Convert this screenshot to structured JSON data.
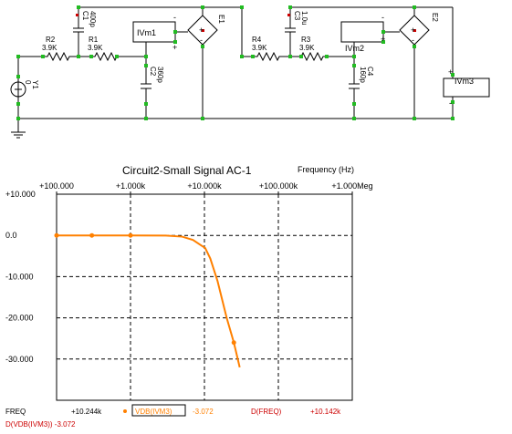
{
  "schematic": {
    "components": {
      "c1_name": "C1",
      "c1_value": "400p",
      "r2_name": "R2",
      "r2_value": "3.9K",
      "r1_name": "R1",
      "r1_value": "3.9K",
      "ivm1": "IVm1",
      "e1": "E1",
      "c2_name": "C2",
      "c2_value": "360p",
      "y1_name": "Y1",
      "y1_value": "0",
      "r4_name": "R4",
      "r4_value": "3.9K",
      "c3_name": "C3",
      "c3_value": "1.0u",
      "r3_name": "R3",
      "r3_value": "3.9K",
      "ivm2": "IVm2",
      "e2": "E2",
      "c4_name": "C4",
      "c4_value": "160p",
      "ivm3": "IVm3"
    },
    "polarity": {
      "plus": "+",
      "minus": "-"
    }
  },
  "plot": {
    "title": "Circuit2-Small Signal AC-1",
    "x_caption": "Frequency (Hz)",
    "top_ticks": [
      "+100.000",
      "+1.000k",
      "+10.000k",
      "+100.000k",
      "+1.000Meg"
    ],
    "left_ticks": [
      "+10.000",
      "0.0",
      "-10.000",
      "-20.000",
      "-30.000"
    ]
  },
  "readout": {
    "freq_label": "FREQ",
    "freq_value": "+10.244k",
    "trace_name": "VDB(IVM3)",
    "trace_value": "-3.072",
    "dfreq_label": "D(FREQ)",
    "dfreq_value": "+10.142k",
    "dvdb_label": "D(VDB(IVM3)) -3.072"
  },
  "colors": {
    "trace": "#ff8000",
    "grid": "#000000",
    "readout_red": "#cc0000",
    "node": "#22bb22"
  },
  "chart_data": {
    "type": "line",
    "title": "Circuit2-Small Signal AC-1",
    "xlabel": "Frequency (Hz)",
    "ylabel": "",
    "x_scale": "log",
    "xlim": [
      100,
      1000000
    ],
    "ylim": [
      -40,
      10
    ],
    "grid": true,
    "series": [
      {
        "name": "VDB(IVM3)",
        "x": [
          100,
          300,
          1000,
          3000,
          5000,
          7000,
          9000,
          10244,
          12000,
          15000,
          20000,
          25000,
          30000
        ],
        "y": [
          0,
          0,
          0,
          -0.05,
          -0.3,
          -1.1,
          -2.4,
          -3.072,
          -5.6,
          -11,
          -20,
          -26,
          -32
        ]
      }
    ]
  }
}
